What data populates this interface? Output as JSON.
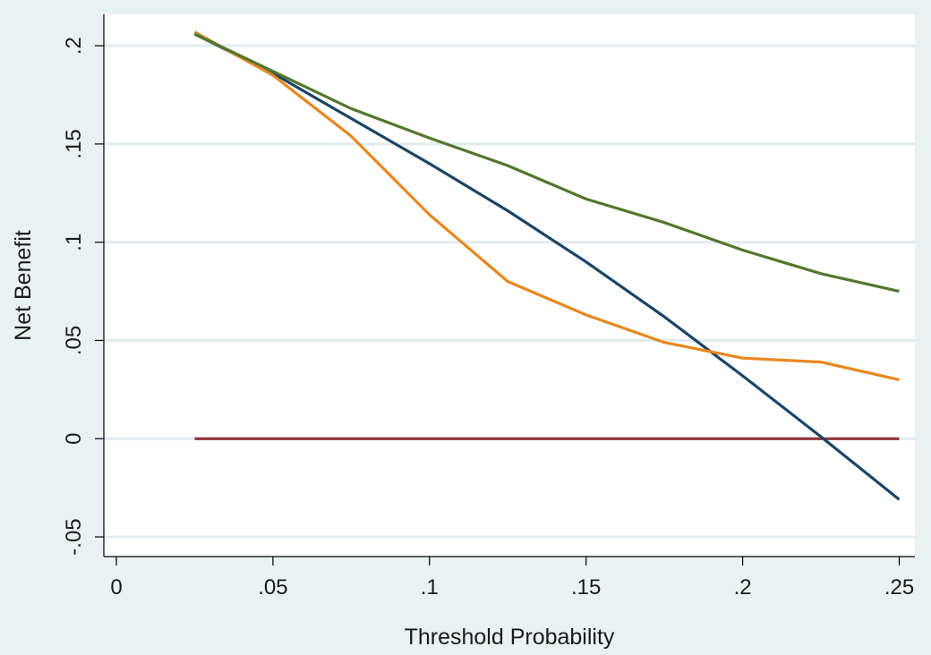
{
  "chart_data": {
    "type": "line",
    "title": "",
    "xlabel": "Threshold Probability",
    "ylabel": "Net Benefit",
    "xlim": [
      -0.004,
      0.255
    ],
    "ylim": [
      -0.06,
      0.216
    ],
    "xticks": [
      {
        "value": 0,
        "label": "0"
      },
      {
        "value": 0.05,
        "label": ".05"
      },
      {
        "value": 0.1,
        "label": ".1"
      },
      {
        "value": 0.15,
        "label": ".15"
      },
      {
        "value": 0.2,
        "label": ".2"
      },
      {
        "value": 0.25,
        "label": ".25"
      }
    ],
    "yticks": [
      {
        "value": -0.05,
        "label": "-.05"
      },
      {
        "value": 0,
        "label": "0"
      },
      {
        "value": 0.05,
        "label": ".05"
      },
      {
        "value": 0.1,
        "label": ".1"
      },
      {
        "value": 0.15,
        "label": ".15"
      },
      {
        "value": 0.2,
        "label": ".2"
      }
    ],
    "grid": "horizontal",
    "legend": "none",
    "x": [
      0.025,
      0.05,
      0.075,
      0.1,
      0.125,
      0.15,
      0.175,
      0.2,
      0.225,
      0.25
    ],
    "series": [
      {
        "color": "#1c4466",
        "values": [
          0.206,
          0.186,
          0.163,
          0.14,
          0.116,
          0.09,
          0.062,
          0.032,
          0.001,
          -0.031
        ]
      },
      {
        "color": "#e8871e",
        "values": [
          0.207,
          0.185,
          0.154,
          0.114,
          0.08,
          0.063,
          0.049,
          0.041,
          0.039,
          0.03
        ]
      },
      {
        "color": "#55752f",
        "values": [
          0.206,
          0.187,
          0.168,
          0.153,
          0.139,
          0.122,
          0.11,
          0.096,
          0.084,
          0.075
        ]
      },
      {
        "color": "#90353b",
        "values": [
          0,
          0,
          0,
          0,
          0,
          0,
          0,
          0,
          0,
          0
        ]
      }
    ]
  }
}
